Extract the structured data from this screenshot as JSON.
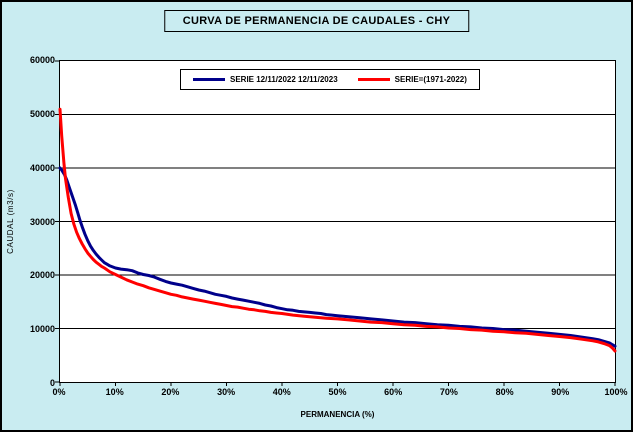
{
  "chart_data": {
    "type": "line",
    "title": "CURVA DE PERMANENCIA DE CAUDALES - CHY",
    "xlabel": "PERMANENCIA (%)",
    "ylabel": "CAUDAL (m3/s)",
    "xlim": [
      0,
      100
    ],
    "ylim": [
      0,
      60000
    ],
    "x_tick_labels": [
      "0%",
      "10%",
      "20%",
      "30%",
      "40%",
      "50%",
      "60%",
      "70%",
      "80%",
      "90%",
      "100%"
    ],
    "y_tick_values": [
      0,
      10000,
      20000,
      30000,
      40000,
      50000,
      60000
    ],
    "grid": "horizontal",
    "legend_position": "top-center-inside",
    "plot_bg_color": "#FFFFFF",
    "window_bg_color": "#C9ECF1",
    "series": [
      {
        "name": "SERIE 12/11/2022 12/11/2023",
        "color": "#00008B",
        "points": [
          [
            0,
            40000
          ],
          [
            0.3,
            39600
          ],
          [
            0.8,
            38800
          ],
          [
            1.2,
            37800
          ],
          [
            1.6,
            36600
          ],
          [
            2,
            35400
          ],
          [
            2.4,
            34200
          ],
          [
            2.8,
            33000
          ],
          [
            3.2,
            31600
          ],
          [
            3.6,
            30200
          ],
          [
            4,
            29000
          ],
          [
            4.5,
            27600
          ],
          [
            5,
            26400
          ],
          [
            5.5,
            25400
          ],
          [
            6,
            24600
          ],
          [
            6.5,
            23900
          ],
          [
            7,
            23300
          ],
          [
            7.5,
            22800
          ],
          [
            8,
            22300
          ],
          [
            8.5,
            22000
          ],
          [
            9,
            21700
          ],
          [
            10,
            21300
          ],
          [
            11,
            21100
          ],
          [
            12,
            21000
          ],
          [
            13,
            20800
          ],
          [
            14,
            20400
          ],
          [
            15,
            20100
          ],
          [
            16,
            19900
          ],
          [
            17,
            19600
          ],
          [
            18,
            19200
          ],
          [
            19,
            18800
          ],
          [
            20,
            18500
          ],
          [
            21,
            18300
          ],
          [
            22,
            18100
          ],
          [
            23,
            17800
          ],
          [
            24,
            17500
          ],
          [
            25,
            17200
          ],
          [
            26,
            17000
          ],
          [
            27,
            16700
          ],
          [
            28,
            16400
          ],
          [
            29,
            16200
          ],
          [
            30,
            16000
          ],
          [
            31,
            15700
          ],
          [
            32,
            15500
          ],
          [
            33,
            15300
          ],
          [
            34,
            15100
          ],
          [
            35,
            14900
          ],
          [
            36,
            14700
          ],
          [
            37,
            14400
          ],
          [
            38,
            14200
          ],
          [
            39,
            13900
          ],
          [
            40,
            13700
          ],
          [
            41,
            13500
          ],
          [
            42,
            13400
          ],
          [
            43,
            13200
          ],
          [
            44,
            13100
          ],
          [
            45,
            13000
          ],
          [
            46,
            12900
          ],
          [
            47,
            12800
          ],
          [
            48,
            12600
          ],
          [
            49,
            12500
          ],
          [
            50,
            12400
          ],
          [
            52,
            12200
          ],
          [
            54,
            12000
          ],
          [
            56,
            11800
          ],
          [
            58,
            11600
          ],
          [
            60,
            11400
          ],
          [
            62,
            11200
          ],
          [
            64,
            11100
          ],
          [
            66,
            10900
          ],
          [
            68,
            10700
          ],
          [
            70,
            10600
          ],
          [
            72,
            10400
          ],
          [
            74,
            10300
          ],
          [
            76,
            10100
          ],
          [
            78,
            10000
          ],
          [
            80,
            9800
          ],
          [
            82,
            9700
          ],
          [
            84,
            9500
          ],
          [
            86,
            9300
          ],
          [
            88,
            9100
          ],
          [
            90,
            8900
          ],
          [
            92,
            8700
          ],
          [
            94,
            8400
          ],
          [
            96,
            8100
          ],
          [
            97,
            7900
          ],
          [
            98,
            7600
          ],
          [
            99,
            7300
          ],
          [
            99.5,
            7000
          ],
          [
            100,
            6700
          ]
        ]
      },
      {
        "name": "SERIE=(1971-2022)",
        "color": "#FF0000",
        "points": [
          [
            0,
            51000
          ],
          [
            0.3,
            46000
          ],
          [
            0.7,
            41000
          ],
          [
            1,
            38000
          ],
          [
            1.5,
            34500
          ],
          [
            2,
            31500
          ],
          [
            2.5,
            29500
          ],
          [
            3,
            28000
          ],
          [
            3.5,
            26800
          ],
          [
            4,
            25800
          ],
          [
            4.5,
            24900
          ],
          [
            5,
            24100
          ],
          [
            5.5,
            23500
          ],
          [
            6,
            22900
          ],
          [
            6.5,
            22400
          ],
          [
            7,
            22000
          ],
          [
            7.5,
            21600
          ],
          [
            8,
            21300
          ],
          [
            9,
            20600
          ],
          [
            10,
            20100
          ],
          [
            11,
            19600
          ],
          [
            12,
            19100
          ],
          [
            13,
            18700
          ],
          [
            14,
            18300
          ],
          [
            15,
            18000
          ],
          [
            16,
            17600
          ],
          [
            17,
            17300
          ],
          [
            18,
            17000
          ],
          [
            19,
            16700
          ],
          [
            20,
            16400
          ],
          [
            21,
            16200
          ],
          [
            22,
            15900
          ],
          [
            23,
            15700
          ],
          [
            24,
            15500
          ],
          [
            25,
            15300
          ],
          [
            26,
            15100
          ],
          [
            27,
            14900
          ],
          [
            28,
            14700
          ],
          [
            29,
            14500
          ],
          [
            30,
            14300
          ],
          [
            31,
            14100
          ],
          [
            32,
            14000
          ],
          [
            33,
            13800
          ],
          [
            34,
            13600
          ],
          [
            35,
            13500
          ],
          [
            36,
            13300
          ],
          [
            37,
            13200
          ],
          [
            38,
            13000
          ],
          [
            39,
            12900
          ],
          [
            40,
            12800
          ],
          [
            42,
            12500
          ],
          [
            44,
            12300
          ],
          [
            46,
            12100
          ],
          [
            48,
            11900
          ],
          [
            50,
            11800
          ],
          [
            52,
            11600
          ],
          [
            54,
            11400
          ],
          [
            56,
            11200
          ],
          [
            58,
            11100
          ],
          [
            60,
            10900
          ],
          [
            62,
            10700
          ],
          [
            64,
            10600
          ],
          [
            66,
            10400
          ],
          [
            68,
            10300
          ],
          [
            70,
            10100
          ],
          [
            72,
            10000
          ],
          [
            74,
            9800
          ],
          [
            76,
            9700
          ],
          [
            78,
            9500
          ],
          [
            80,
            9400
          ],
          [
            82,
            9200
          ],
          [
            84,
            9100
          ],
          [
            86,
            8900
          ],
          [
            88,
            8700
          ],
          [
            90,
            8500
          ],
          [
            92,
            8300
          ],
          [
            94,
            8000
          ],
          [
            96,
            7700
          ],
          [
            97,
            7500
          ],
          [
            98,
            7200
          ],
          [
            99,
            6800
          ],
          [
            99.5,
            6400
          ],
          [
            100,
            5800
          ]
        ]
      }
    ]
  }
}
